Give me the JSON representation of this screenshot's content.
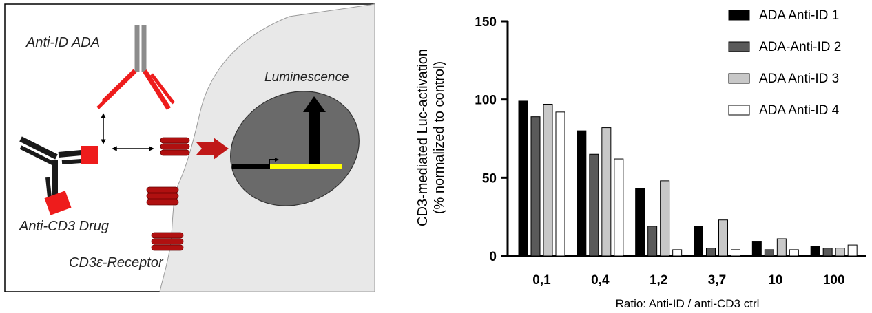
{
  "schematic": {
    "labels": {
      "anti_id_ada": "Anti-ID ADA",
      "anti_cd3_drug": "Anti-CD3 Drug",
      "receptor": "CD3ε-Receptor",
      "luminescence": "Luminescence"
    },
    "colors": {
      "antibody_arm": "#ee1c1c",
      "drug_body": "#1a1a1a",
      "ada_body": "#8c8c8c",
      "receptor": "#b01010",
      "cell": "#e8e8e8",
      "nucleus": "#6a6a6a",
      "gene": "#ffff00"
    }
  },
  "chart_data": {
    "type": "bar",
    "ylabel_line1": "CD3-mediated Luc-activation",
    "ylabel_line2": "(% normalized to control)",
    "xlabel": "Ratio: Anti-ID / anti-CD3 ctrl",
    "ylim": [
      0,
      150
    ],
    "yticks": [
      "0",
      "50",
      "100",
      "150"
    ],
    "categories": [
      "0,1",
      "0,4",
      "1,2",
      "3,7",
      "10",
      "100"
    ],
    "legend_position": "top-right",
    "series": [
      {
        "name": "ADA Anti-ID 1",
        "color": "#000000",
        "values": [
          99,
          80,
          43,
          19,
          9,
          6
        ]
      },
      {
        "name": "ADA-Anti-ID 2",
        "color": "#5a5a5a",
        "values": [
          89,
          65,
          19,
          5,
          4,
          5
        ]
      },
      {
        "name": "ADA Anti-ID 3",
        "color": "#c8c8c8",
        "values": [
          97,
          82,
          48,
          23,
          11,
          5
        ]
      },
      {
        "name": "ADA Anti-ID 4",
        "color": "#ffffff",
        "values": [
          92,
          62,
          4,
          4,
          4,
          7
        ]
      }
    ]
  }
}
